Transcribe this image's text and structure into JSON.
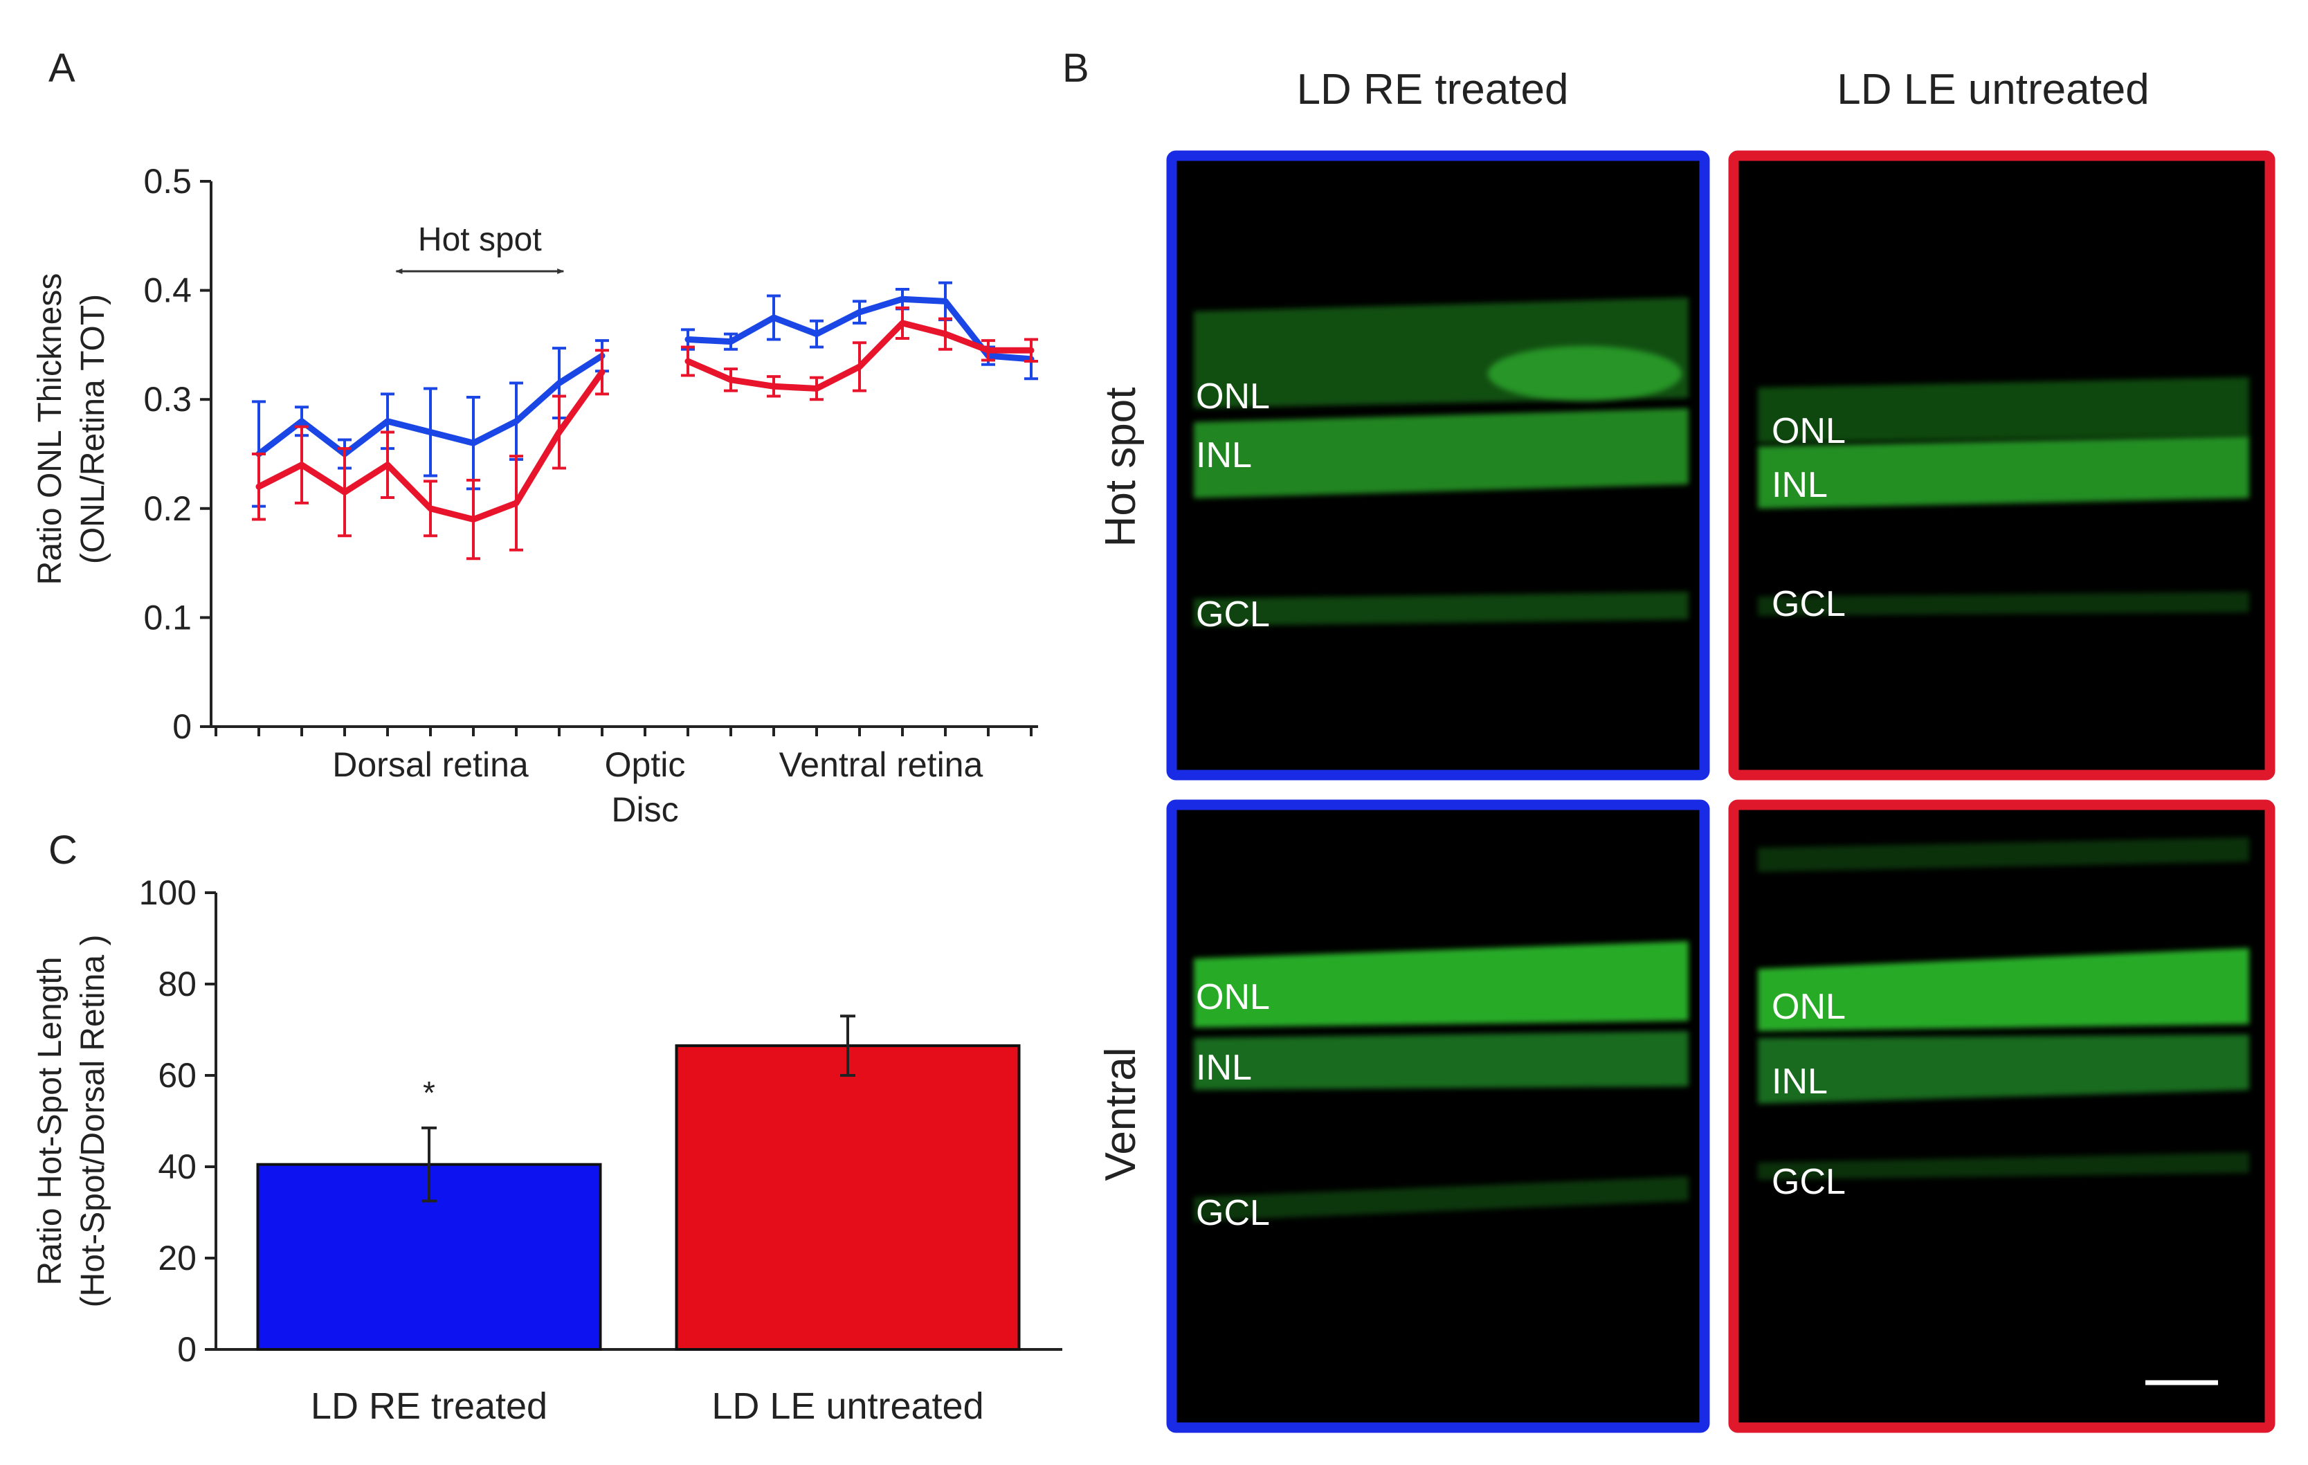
{
  "panels": {
    "a_label": "A",
    "b_label": "B",
    "c_label": "C"
  },
  "chart_data": [
    {
      "type": "line",
      "panel": "A",
      "ylabel": "Ratio ONL Thickness",
      "ylabel2": "(ONL/Retina TOT)",
      "ylim": [
        0,
        0.5
      ],
      "yticks": [
        "0",
        "0.1",
        "0.2",
        "0.3",
        "0.4",
        "0.5"
      ],
      "x_positions": 19,
      "category_labels": [
        {
          "text": "Dorsal retina",
          "line2": "",
          "x": 5
        },
        {
          "text": "Optic",
          "line2": "Disc",
          "x": 10
        },
        {
          "text": "Ventral retina",
          "line2": "",
          "x": 15.5
        }
      ],
      "annotation": {
        "text": "Hot spot",
        "from": 4.2,
        "to": 8.1
      },
      "series": [
        {
          "name": "LD RE treated",
          "color": "#1a46e6",
          "segments": [
            {
              "x": [
                1,
                2,
                3,
                4,
                5,
                6,
                7,
                8,
                9
              ],
              "y": [
                0.25,
                0.28,
                0.25,
                0.28,
                0.27,
                0.26,
                0.28,
                0.315,
                0.34
              ],
              "err": [
                0.048,
                0.013,
                0.013,
                0.025,
                0.04,
                0.042,
                0.035,
                0.032,
                0.014
              ]
            },
            {
              "x": [
                11,
                12,
                13,
                14,
                15,
                16,
                17,
                18,
                19
              ],
              "y": [
                0.355,
                0.353,
                0.375,
                0.36,
                0.38,
                0.392,
                0.39,
                0.34,
                0.337
              ],
              "err": [
                0.009,
                0.007,
                0.02,
                0.012,
                0.01,
                0.009,
                0.017,
                0.008,
                0.018
              ]
            }
          ]
        },
        {
          "name": "LD LE untreated",
          "color": "#e8142b",
          "segments": [
            {
              "x": [
                1,
                2,
                3,
                4,
                5,
                6,
                7,
                8,
                9
              ],
              "y": [
                0.22,
                0.24,
                0.215,
                0.24,
                0.2,
                0.19,
                0.205,
                0.27,
                0.325
              ],
              "err": [
                0.03,
                0.035,
                0.04,
                0.03,
                0.025,
                0.036,
                0.043,
                0.033,
                0.02
              ]
            },
            {
              "x": [
                11,
                12,
                13,
                14,
                15,
                16,
                17,
                18,
                19
              ],
              "y": [
                0.335,
                0.318,
                0.312,
                0.31,
                0.33,
                0.37,
                0.36,
                0.345,
                0.345
              ],
              "err": [
                0.013,
                0.01,
                0.009,
                0.01,
                0.022,
                0.014,
                0.014,
                0.009,
                0.01
              ]
            }
          ]
        }
      ]
    },
    {
      "type": "bar",
      "panel": "C",
      "ylabel": "Ratio Hot-Spot Length",
      "ylabel2": "(Hot-Spot/Dorsal Retina )",
      "ylim": [
        0,
        100
      ],
      "yticks": [
        "0",
        "20",
        "40",
        "60",
        "80",
        "100"
      ],
      "categories": [
        "LD RE treated",
        "LD LE untreated"
      ],
      "values": [
        40.5,
        66.5
      ],
      "errors": [
        8,
        6.5
      ],
      "colors": [
        "#0d12f0",
        "#e60d1a"
      ],
      "annotations": [
        "*",
        ""
      ]
    }
  ],
  "micrographs": {
    "columns": [
      "LD RE treated",
      "LD LE untreated"
    ],
    "rows": [
      "Hot spot",
      "Ventral"
    ],
    "frame_colors": [
      "#1a2be6",
      "#e0182b"
    ],
    "layer_labels": {
      "onl": "ONL",
      "inl": "INL",
      "gcl": "GCL"
    }
  }
}
